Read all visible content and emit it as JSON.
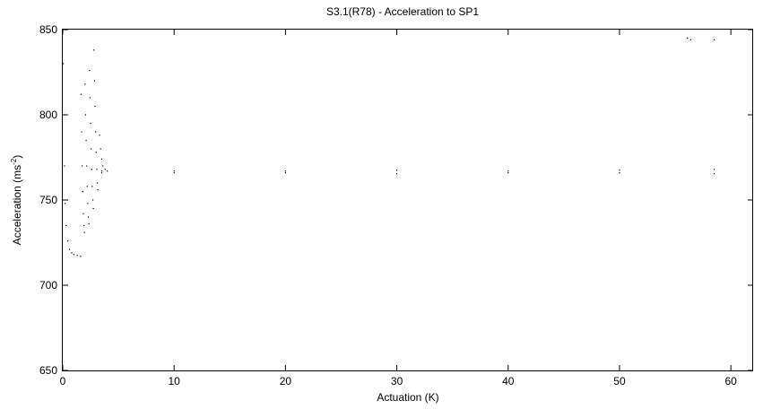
{
  "chart_data": {
    "type": "scatter",
    "title": "S3.1(R78) - Acceleration to SP1",
    "xlabel": "Actuation (K)",
    "ylabel_main": "Acceleration (ms",
    "ylabel_sup": "-2",
    "ylabel_close": ")",
    "xlim": [
      0,
      62
    ],
    "ylim": [
      650,
      850
    ],
    "xticks": [
      0,
      10,
      20,
      30,
      40,
      50,
      60
    ],
    "yticks": [
      650,
      700,
      750,
      800,
      850
    ],
    "grid": false,
    "legend": "none",
    "series": [
      {
        "points": [
          [
            0.0,
            850
          ],
          [
            0.05,
            830
          ],
          [
            0.1,
            800
          ],
          [
            0.15,
            770
          ],
          [
            0.2,
            748
          ],
          [
            0.3,
            735
          ],
          [
            0.45,
            726
          ],
          [
            0.6,
            721
          ],
          [
            0.8,
            719
          ],
          [
            1.0,
            718
          ],
          [
            1.3,
            717.5
          ],
          [
            1.6,
            717
          ],
          [
            1.65,
            812
          ],
          [
            1.7,
            790
          ],
          [
            1.75,
            770
          ],
          [
            1.8,
            755
          ],
          [
            1.85,
            742
          ],
          [
            1.9,
            735
          ],
          [
            1.95,
            731
          ],
          [
            2.0,
            818
          ],
          [
            2.05,
            800
          ],
          [
            2.1,
            785
          ],
          [
            2.15,
            770
          ],
          [
            2.2,
            758
          ],
          [
            2.25,
            748
          ],
          [
            2.3,
            740
          ],
          [
            2.35,
            736
          ],
          [
            2.4,
            826
          ],
          [
            2.45,
            810
          ],
          [
            2.5,
            795
          ],
          [
            2.55,
            780
          ],
          [
            2.6,
            768
          ],
          [
            2.65,
            758
          ],
          [
            2.7,
            750
          ],
          [
            2.75,
            745
          ],
          [
            2.8,
            838
          ],
          [
            2.85,
            820
          ],
          [
            2.9,
            805
          ],
          [
            2.95,
            790
          ],
          [
            3.0,
            778
          ],
          [
            3.05,
            768
          ],
          [
            3.1,
            760
          ],
          [
            3.15,
            756
          ],
          [
            3.3,
            788
          ],
          [
            3.4,
            780
          ],
          [
            3.5,
            774
          ],
          [
            3.6,
            770
          ],
          [
            3.8,
            768
          ],
          [
            4.0,
            767
          ],
          [
            56.1,
            845
          ],
          [
            56.4,
            844
          ],
          [
            58.5,
            844
          ]
        ]
      },
      {
        "points": [
          [
            3.5,
            767
          ],
          [
            10,
            767
          ],
          [
            20,
            767
          ],
          [
            30,
            767.5
          ],
          [
            40,
            767
          ],
          [
            50,
            767.5
          ],
          [
            58.5,
            768
          ]
        ]
      },
      {
        "points": [
          [
            3.5,
            766
          ],
          [
            10,
            766
          ],
          [
            20,
            766
          ],
          [
            30,
            765.5
          ],
          [
            40,
            766
          ],
          [
            50,
            766
          ],
          [
            58.5,
            765.5
          ]
        ]
      }
    ]
  }
}
